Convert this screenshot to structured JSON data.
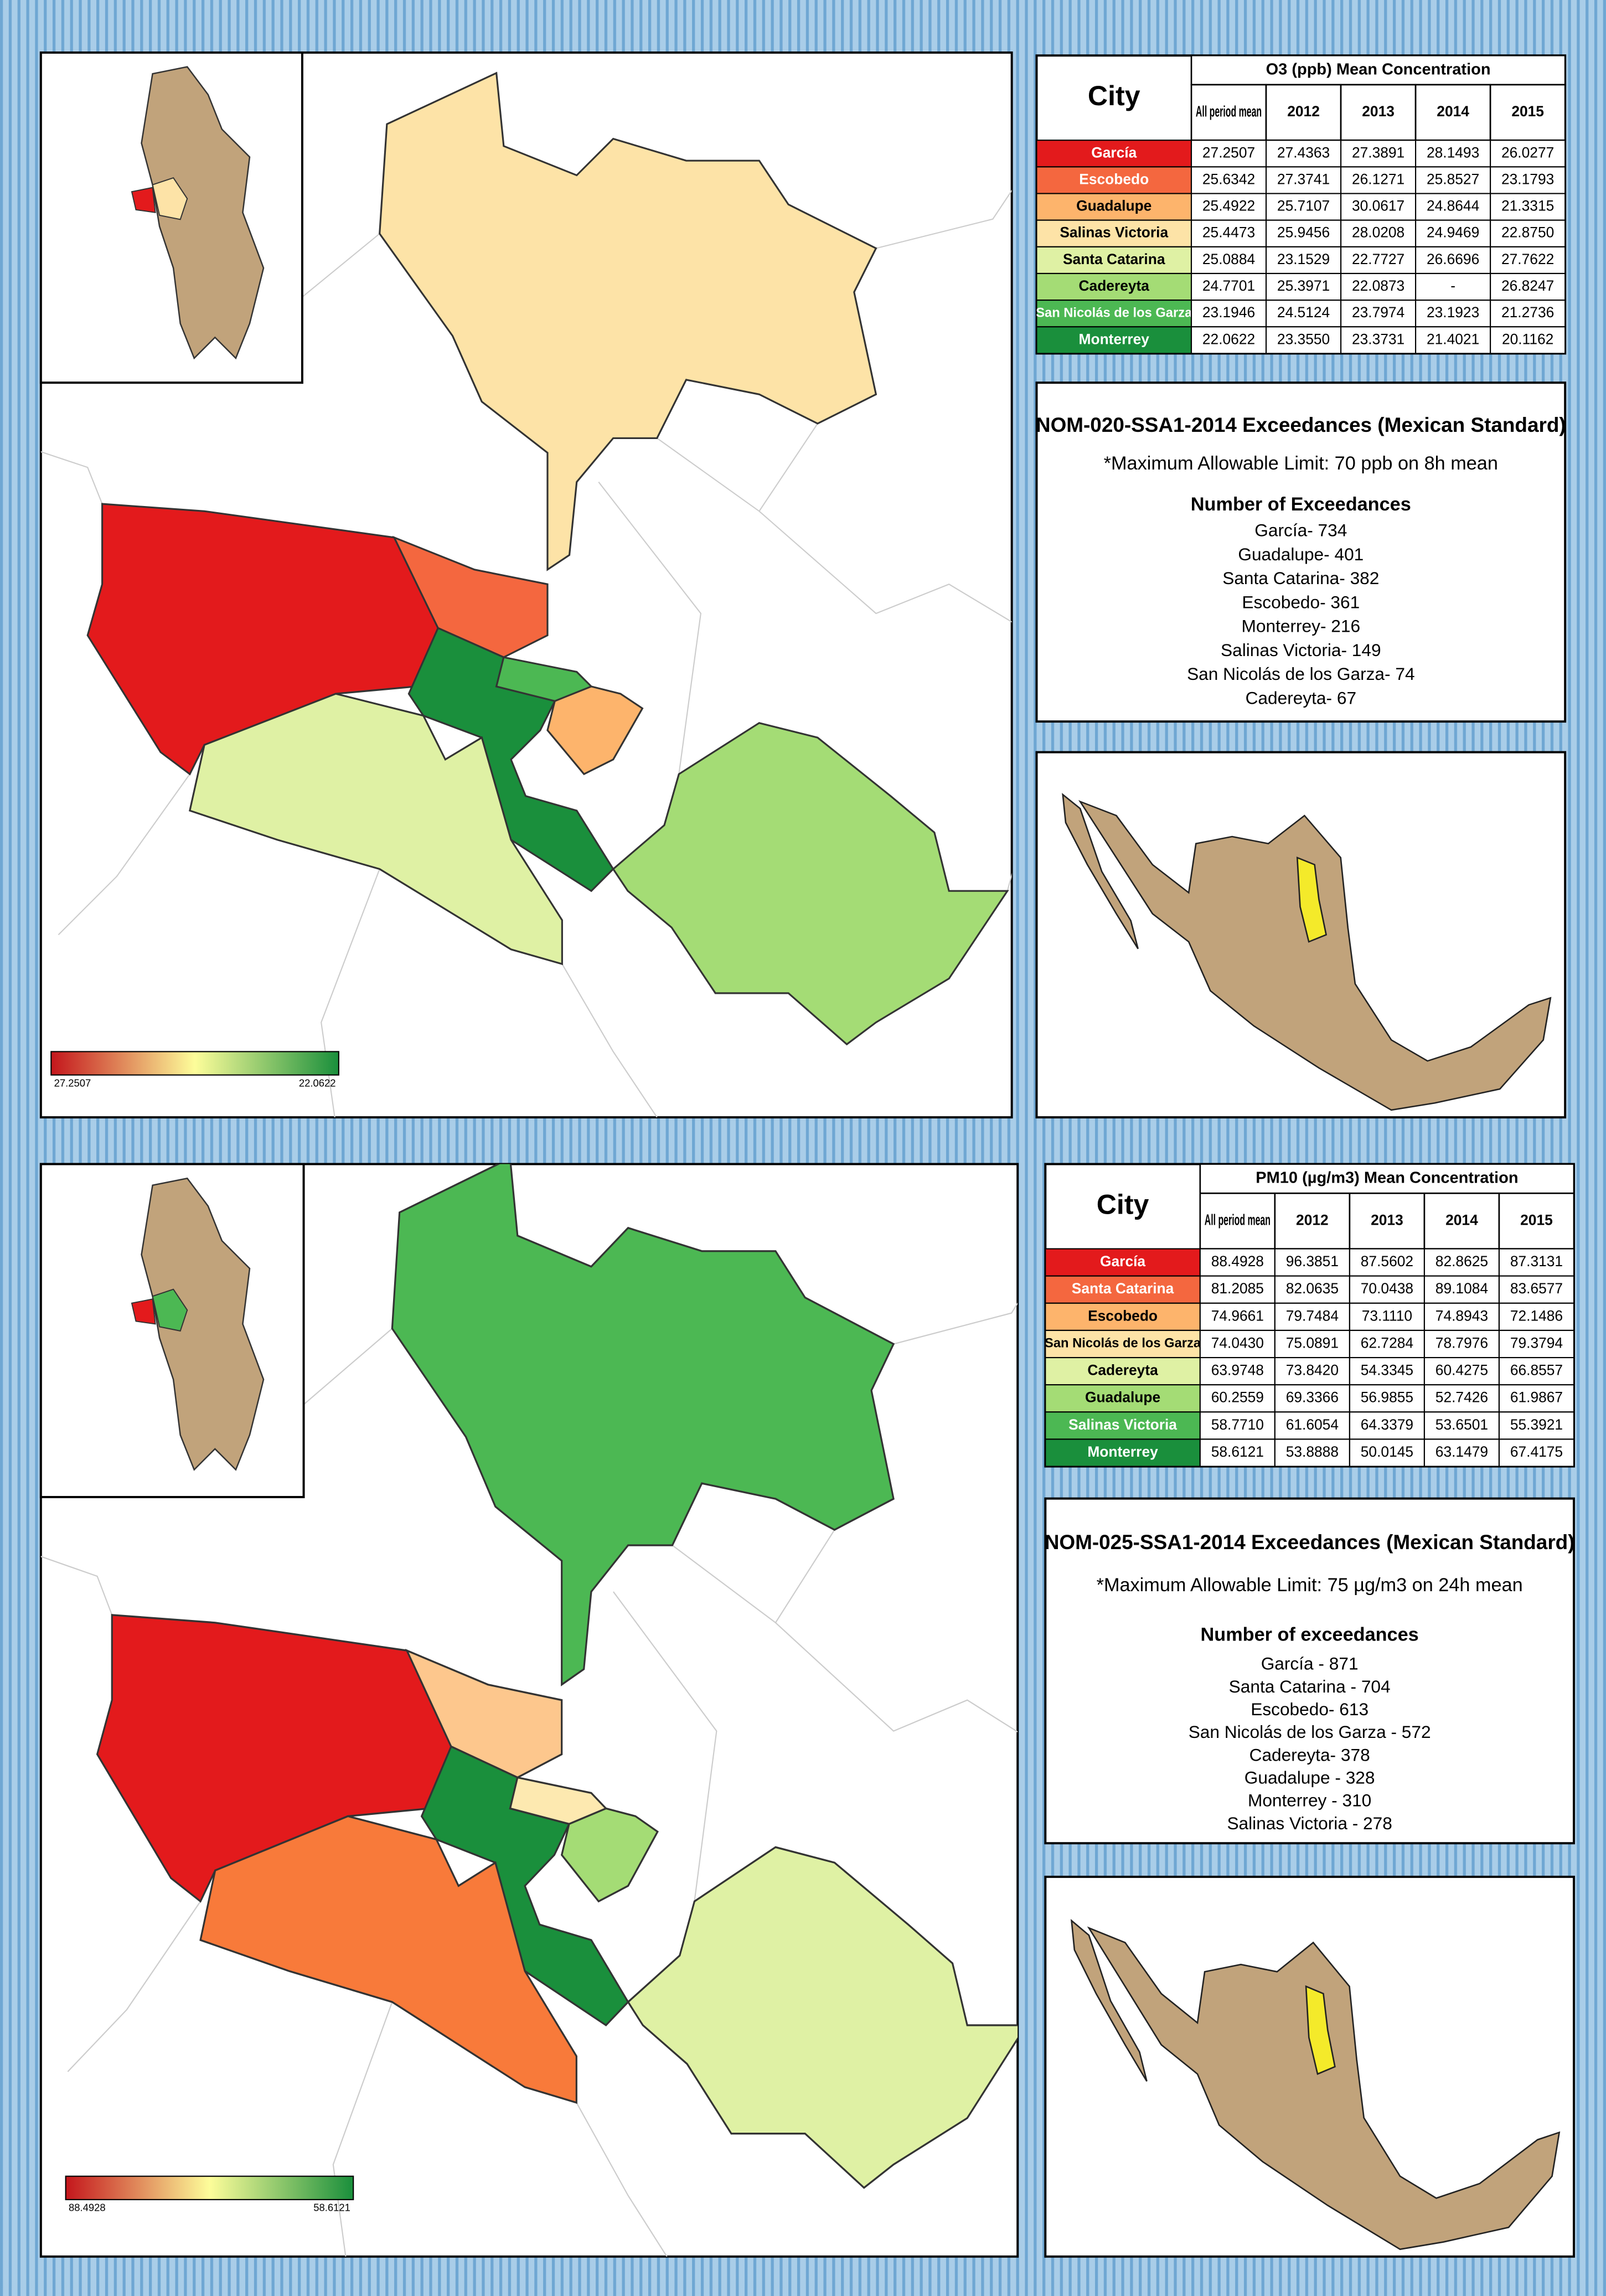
{
  "panels": [
    {
      "table": {
        "city_header": "City",
        "title": "O3 (ppb) Mean Concentration",
        "columns": [
          "All period mean",
          "2012",
          "2013",
          "2014",
          "2015"
        ],
        "rows": [
          {
            "city": "García",
            "color": "#e31a1c",
            "values": [
              "27.2507",
              "27.4363",
              "27.3891",
              "28.1493",
              "26.0277"
            ]
          },
          {
            "city": "Escobedo",
            "color": "#f4673f",
            "values": [
              "25.6342",
              "27.3741",
              "26.1271",
              "25.8527",
              "23.1793"
            ]
          },
          {
            "city": "Guadalupe",
            "color": "#fdb46c",
            "values": [
              "25.4922",
              "25.7107",
              "30.0617",
              "24.8644",
              "21.3315"
            ]
          },
          {
            "city": "Salinas Victoria",
            "color": "#fde3a7",
            "values": [
              "25.4473",
              "25.9456",
              "28.0208",
              "24.9469",
              "22.8750"
            ]
          },
          {
            "city": "Santa Catarina",
            "color": "#dff1a4",
            "values": [
              "25.0884",
              "23.1529",
              "22.7727",
              "26.6696",
              "27.7622"
            ]
          },
          {
            "city": "Cadereyta",
            "color": "#a4dc75",
            "values": [
              "24.7701",
              "25.3971",
              "22.0873",
              "-",
              "26.8247"
            ]
          },
          {
            "city": "San Nicolás de los Garza",
            "color": "#4cb853",
            "values": [
              "23.1946",
              "24.5124",
              "23.7974",
              "23.1923",
              "21.2736"
            ]
          },
          {
            "city": "Monterrey",
            "color": "#1a8f3c",
            "values": [
              "22.0622",
              "23.3550",
              "23.3731",
              "21.4021",
              "20.1162"
            ]
          }
        ]
      },
      "standard": {
        "title": "NOM-020-SSA1-2014 Exceedances (Mexican Standard)",
        "limit": "*Maximum Allowable Limit: 70 ppb on 8h mean",
        "heading": "Number of Exceedances",
        "items": [
          "García- 734",
          "Guadalupe- 401",
          "Santa Catarina- 382",
          "Escobedo- 361",
          "Monterrey- 216",
          "Salinas Victoria- 149",
          "San Nicolás de los Garza- 74",
          "Cadereyta- 67"
        ]
      },
      "legend": {
        "min": "27.2507",
        "max": "22.0622"
      }
    },
    {
      "table": {
        "city_header": "City",
        "title": "PM10 (µg/m3) Mean Concentration",
        "columns": [
          "All period mean",
          "2012",
          "2013",
          "2014",
          "2015"
        ],
        "rows": [
          {
            "city": "García",
            "color": "#e31a1c",
            "values": [
              "88.4928",
              "96.3851",
              "87.5602",
              "82.8625",
              "87.3131"
            ]
          },
          {
            "city": "Santa Catarina",
            "color": "#f4673f",
            "values": [
              "81.2085",
              "82.0635",
              "70.0438",
              "89.1084",
              "83.6577"
            ]
          },
          {
            "city": "Escobedo",
            "color": "#fdb46c",
            "values": [
              "74.9661",
              "79.7484",
              "73.1110",
              "74.8943",
              "72.1486"
            ]
          },
          {
            "city": "San Nicolás de los Garza",
            "color": "#fde3a7",
            "values": [
              "74.0430",
              "75.0891",
              "62.7284",
              "78.7976",
              "79.3794"
            ]
          },
          {
            "city": "Cadereyta",
            "color": "#dff1a4",
            "values": [
              "63.9748",
              "73.8420",
              "54.3345",
              "60.4275",
              "66.8557"
            ]
          },
          {
            "city": "Guadalupe",
            "color": "#a4dc75",
            "values": [
              "60.2559",
              "69.3366",
              "56.9855",
              "52.7426",
              "61.9867"
            ]
          },
          {
            "city": "Salinas Victoria",
            "color": "#4cb853",
            "values": [
              "58.7710",
              "61.6054",
              "64.3379",
              "53.6501",
              "55.3921"
            ]
          },
          {
            "city": "Monterrey",
            "color": "#1a8f3c",
            "values": [
              "58.6121",
              "53.8888",
              "50.0145",
              "63.1479",
              "67.4175"
            ]
          }
        ]
      },
      "standard": {
        "title": "NOM-025-SSA1-2014 Exceedances (Mexican Standard)",
        "limit": "*Maximum Allowable Limit: 75 µg/m3 on 24h mean",
        "heading": "Number of exceedances",
        "items": [
          "García - 871",
          "Santa Catarina - 704",
          "Escobedo- 613",
          "San Nicolás de los Garza - 572",
          "Cadereyta- 378",
          "Guadalupe - 328",
          "Monterrey - 310",
          "Salinas Victoria - 278"
        ]
      },
      "legend": {
        "min": "88.4928",
        "max": "58.6121"
      }
    }
  ]
}
